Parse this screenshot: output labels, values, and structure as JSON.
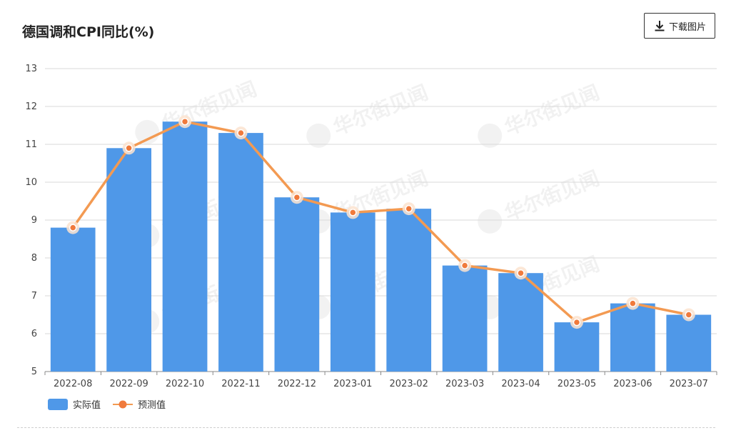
{
  "header": {
    "title": "德国调和CPI同比(%)",
    "download_label": "下载图片"
  },
  "watermark": "华尔街见闻",
  "chart_data": {
    "type": "bar",
    "title": "德国调和CPI同比(%)",
    "categories": [
      "2022-08",
      "2022-09",
      "2022-10",
      "2022-11",
      "2022-12",
      "2023-01",
      "2023-02",
      "2023-03",
      "2023-04",
      "2023-05",
      "2023-06",
      "2023-07"
    ],
    "series": [
      {
        "name": "实际值",
        "type": "bar",
        "color": "#4f98e8",
        "values": [
          8.8,
          10.9,
          11.6,
          11.3,
          9.6,
          9.2,
          9.3,
          7.8,
          7.6,
          6.3,
          6.8,
          6.5
        ]
      },
      {
        "name": "预测值",
        "type": "line",
        "color": "#f39a52",
        "values": [
          8.8,
          10.9,
          11.6,
          11.3,
          9.6,
          9.2,
          9.3,
          7.8,
          7.6,
          6.3,
          6.8,
          6.5
        ]
      }
    ],
    "ylim": [
      5,
      13
    ],
    "yticks": [
      5,
      6,
      7,
      8,
      9,
      10,
      11,
      12,
      13
    ],
    "grid": true,
    "legend": "bottom-left"
  }
}
